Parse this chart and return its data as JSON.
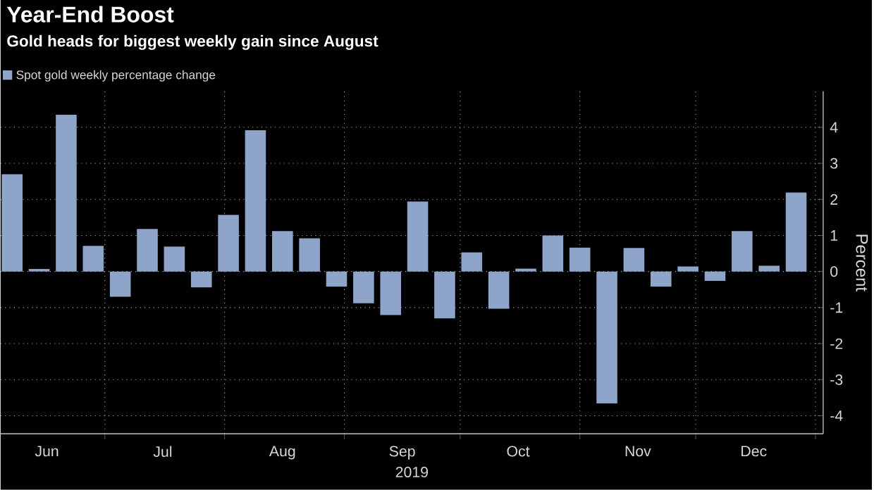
{
  "chart_data": {
    "type": "bar",
    "title": "Year-End Boost",
    "subtitle": "Gold heads for biggest weekly gain since August",
    "xlabel": "2019",
    "ylabel": "Percent",
    "x": [
      "2019-06-07",
      "2019-06-14",
      "2019-06-21",
      "2019-06-28",
      "2019-07-05",
      "2019-07-12",
      "2019-07-19",
      "2019-07-26",
      "2019-08-02",
      "2019-08-09",
      "2019-08-16",
      "2019-08-23",
      "2019-08-30",
      "2019-09-06",
      "2019-09-13",
      "2019-09-20",
      "2019-09-27",
      "2019-10-04",
      "2019-10-11",
      "2019-10-18",
      "2019-10-25",
      "2019-11-01",
      "2019-11-08",
      "2019-11-15",
      "2019-11-22",
      "2019-11-29",
      "2019-12-06",
      "2019-12-13",
      "2019-12-20",
      "2019-12-27"
    ],
    "series": [
      {
        "name": "Spot gold weekly percentage change",
        "color": "#8ea4c8",
        "values": [
          2.7,
          0.07,
          4.35,
          0.71,
          -0.7,
          1.18,
          0.69,
          -0.44,
          1.57,
          3.92,
          1.12,
          0.92,
          -0.42,
          -0.88,
          -1.21,
          1.94,
          -1.3,
          0.53,
          -1.03,
          0.08,
          1.0,
          0.66,
          -3.66,
          0.65,
          -0.42,
          0.14,
          -0.26,
          1.12,
          0.16,
          2.19
        ]
      }
    ],
    "xlim": [
      "2019-06-04",
      "2020-01-03"
    ],
    "xticks": [
      {
        "value": "2019-06-16",
        "label": "Jun"
      },
      {
        "value": "2019-07-16",
        "label": "Jul"
      },
      {
        "value": "2019-08-16",
        "label": "Aug"
      },
      {
        "value": "2019-09-16",
        "label": "Sep"
      },
      {
        "value": "2019-10-16",
        "label": "Oct"
      },
      {
        "value": "2019-11-16",
        "label": "Nov"
      },
      {
        "value": "2019-12-16",
        "label": "Dec"
      },
      {
        "value": "2019-07-01",
        "label": null
      },
      {
        "value": "2019-08-01",
        "label": null
      },
      {
        "value": "2019-09-01",
        "label": null
      },
      {
        "value": "2019-10-01",
        "label": null
      },
      {
        "value": "2019-11-01",
        "label": null
      },
      {
        "value": "2019-12-01",
        "label": null
      },
      {
        "value": "2020-01-01",
        "label": null
      }
    ],
    "ylim": [
      -4.5,
      5
    ],
    "yticks": [
      -4,
      -3,
      -2,
      -1,
      0,
      1,
      2,
      3,
      4
    ],
    "grid": true,
    "legend": "top left"
  }
}
